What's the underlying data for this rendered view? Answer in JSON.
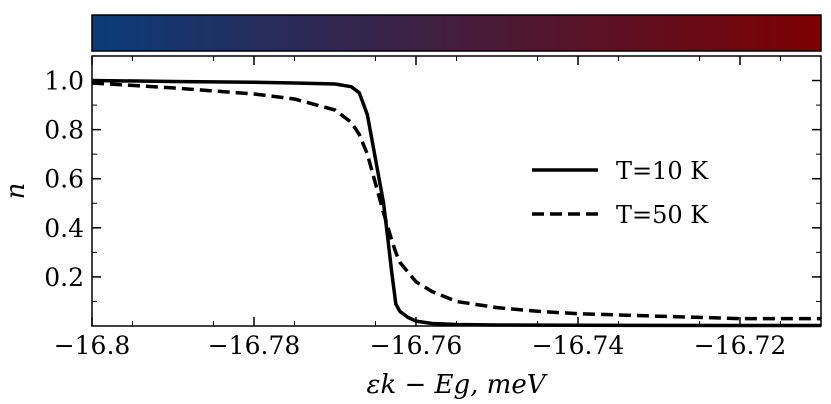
{
  "chart_data": {
    "type": "line",
    "xlabel": "εk − Eg,  meV",
    "ylabel": "n",
    "xlim": [
      -16.8,
      -16.71
    ],
    "ylim": [
      0.0,
      1.1
    ],
    "x_ticks": [
      -16.8,
      -16.78,
      -16.76,
      -16.74,
      -16.72
    ],
    "x_tick_labels": [
      "−16.8",
      "−16.78",
      "−16.76",
      "−16.74",
      "−16.72"
    ],
    "y_ticks": [
      0.2,
      0.4,
      0.6,
      0.8,
      1.0
    ],
    "y_tick_labels": [
      "0.2",
      "0.4",
      "0.6",
      "0.8",
      "1.0"
    ],
    "grid": false,
    "legend_position": "right",
    "colorbar": {
      "from": "#0b3b78",
      "to": "#7d0000"
    },
    "colors": {
      "line": "#000000"
    },
    "series": [
      {
        "name": "T=10 K",
        "style": "solid",
        "x": [
          -16.8,
          -16.79,
          -16.78,
          -16.775,
          -16.77,
          -16.768,
          -16.767,
          -16.766,
          -16.765,
          -16.764,
          -16.7635,
          -16.763,
          -16.7625,
          -16.762,
          -16.761,
          -16.76,
          -16.758,
          -16.755,
          -16.75,
          -16.74,
          -16.72,
          -16.71
        ],
        "values": [
          1.0,
          0.996,
          0.993,
          0.99,
          0.986,
          0.975,
          0.95,
          0.86,
          0.68,
          0.5,
          0.36,
          0.22,
          0.09,
          0.06,
          0.035,
          0.02,
          0.01,
          0.006,
          0.004,
          0.003,
          0.002,
          0.002
        ]
      },
      {
        "name": "T=50 K",
        "style": "dashed",
        "x": [
          -16.8,
          -16.79,
          -16.78,
          -16.775,
          -16.77,
          -16.768,
          -16.767,
          -16.766,
          -16.765,
          -16.764,
          -16.763,
          -16.7625,
          -16.762,
          -16.761,
          -16.76,
          -16.758,
          -16.755,
          -16.75,
          -16.745,
          -16.74,
          -16.73,
          -16.72,
          -16.71
        ],
        "values": [
          0.99,
          0.97,
          0.945,
          0.925,
          0.88,
          0.83,
          0.78,
          0.7,
          0.58,
          0.46,
          0.35,
          0.3,
          0.26,
          0.22,
          0.18,
          0.14,
          0.1,
          0.075,
          0.06,
          0.05,
          0.04,
          0.03,
          0.03
        ]
      }
    ]
  }
}
